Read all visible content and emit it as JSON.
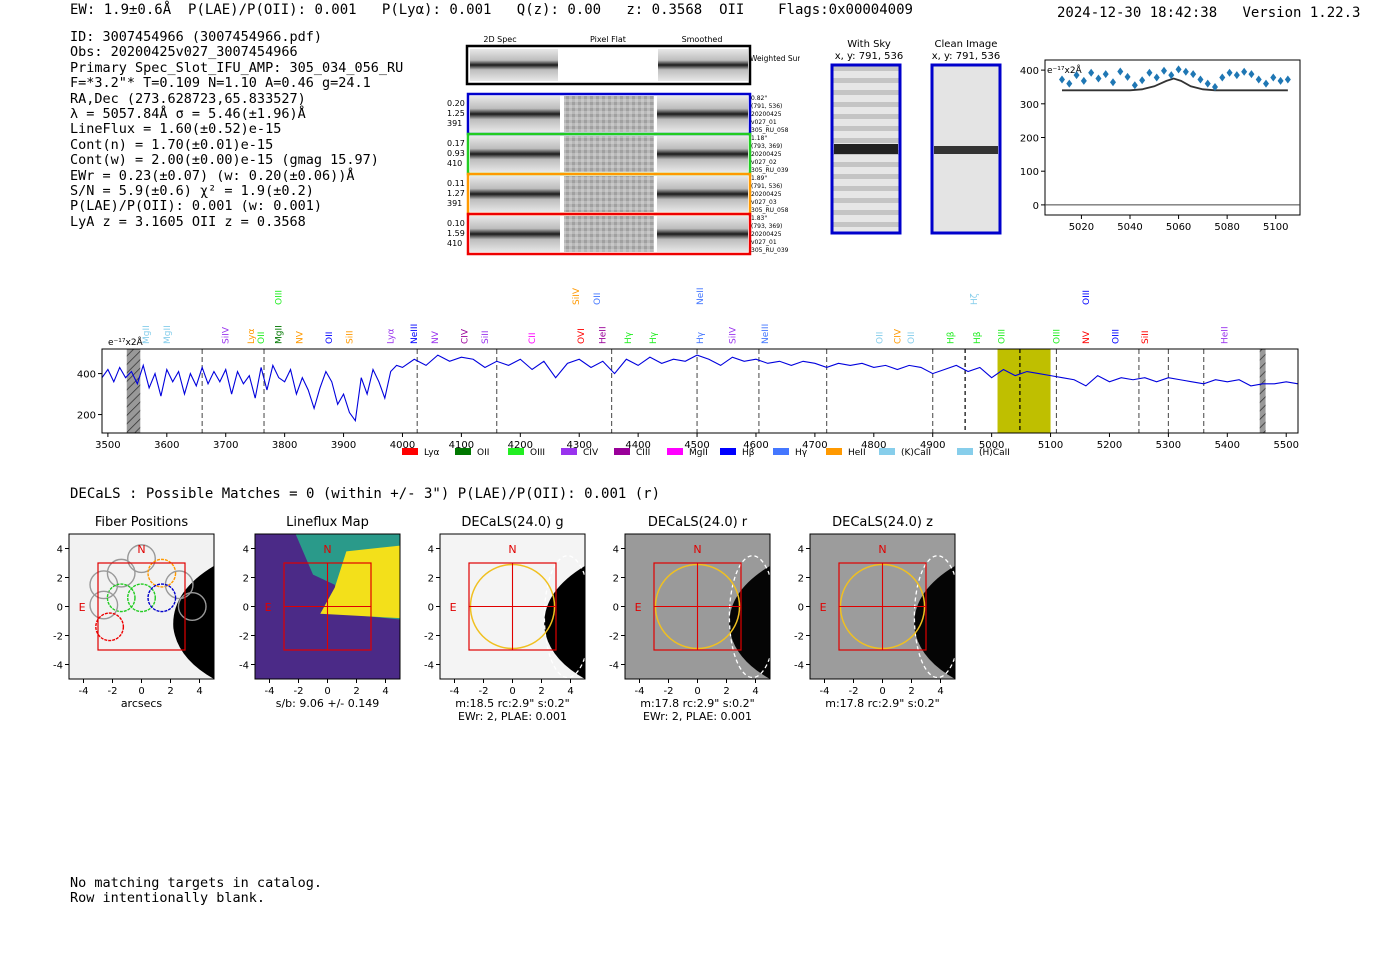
{
  "header": {
    "ew": "EW: 1.9±0.6Å",
    "plae": "P(LAE)/P(OII): 0.001",
    "plya": "P(Lyα): 0.001",
    "qz": "Q(z): 0.00",
    "z": "z: 0.3568",
    "oii": "OII",
    "flags": "Flags:0x00004009",
    "timestamp": "2024-12-30 18:42:38",
    "version": "Version 1.22.3"
  },
  "info_lines": [
    "ID: 3007454966 (3007454966.pdf)",
    "Obs: 20200425v027_3007454966",
    "Primary Spec_Slot_IFU_AMP: 305_034_056_RU",
    "F=*3.2\"*  T=0.109  N=1.10  A=0.46  g=24.1",
    "RA,Dec (273.628723,65.833527)",
    "λ = 5057.84Å  σ = 5.46(±1.96)Å",
    "LineFlux = 1.60(±0.52)e-15",
    "Cont(n) = 1.70(±0.01)e-15",
    "Cont(w) = 2.00(±0.00)e-15 (gmag 15.97)",
    "EWr = 0.23(±0.07) (w: 0.20(±0.06))Å",
    "S/N = 5.9(±0.6)  χ² = 1.9(±0.2)",
    "P(LAE)/P(OII): 0.001 (w: 0.001)",
    "LyA z = 3.1605  OII z = 0.3568"
  ],
  "cutouts": {
    "col_titles": [
      "2D Spec",
      "Pixel Flat",
      "Smoothed"
    ],
    "weighted_label": "Weighted Sum",
    "rows": [
      {
        "left": [
          "0.20",
          "1.25",
          "391"
        ],
        "right": [
          "0.82\"",
          "(791, 536)",
          "20200425",
          "v027_01",
          "305_RU_058"
        ],
        "color": "#0000cc"
      },
      {
        "left": [
          "0.17",
          "0.93",
          "410"
        ],
        "right": [
          "1.18\"",
          "(793, 369)",
          "20200425",
          "v027_02",
          "305_RU_039"
        ],
        "color": "#22cc22"
      },
      {
        "left": [
          "0.11",
          "1.27",
          "391"
        ],
        "right": [
          "1.89\"",
          "(791, 536)",
          "20200425",
          "v027_03",
          "305_RU_058"
        ],
        "color": "#ff9900"
      },
      {
        "left": [
          "0.10",
          "1.59",
          "410"
        ],
        "right": [
          "1.83\"",
          "(793, 369)",
          "20200425",
          "v027_01",
          "305_RU_039"
        ],
        "color": "#ee0000"
      }
    ]
  },
  "sky": {
    "title1": "With Sky",
    "title2": "Clean Image",
    "coords": "x, y: 791, 536"
  },
  "zoom_chart": {
    "type": "scatter",
    "ylabel": "e⁻¹⁷x2Å",
    "xlim": [
      5005,
      5110
    ],
    "ylim": [
      -30,
      430
    ],
    "xticks": [
      5020,
      5040,
      5060,
      5080,
      5100
    ],
    "yticks": [
      0,
      100,
      200,
      300,
      400
    ],
    "x": [
      5012,
      5015,
      5018,
      5021,
      5024,
      5027,
      5030,
      5033,
      5036,
      5039,
      5042,
      5045,
      5048,
      5051,
      5054,
      5057,
      5060,
      5063,
      5066,
      5069,
      5072,
      5075,
      5078,
      5081,
      5084,
      5087,
      5090,
      5093,
      5096,
      5099,
      5102,
      5105
    ],
    "y": [
      372,
      360,
      385,
      368,
      392,
      375,
      388,
      364,
      396,
      380,
      355,
      370,
      392,
      378,
      398,
      385,
      402,
      395,
      388,
      372,
      360,
      350,
      378,
      392,
      385,
      395,
      388,
      372,
      360,
      378,
      368,
      372
    ],
    "model_x": [
      5012,
      5040,
      5045,
      5050,
      5055,
      5058,
      5061,
      5065,
      5070,
      5075,
      5105
    ],
    "model_y": [
      340,
      340,
      343,
      352,
      368,
      375,
      368,
      352,
      343,
      340,
      340
    ]
  },
  "spectrum": {
    "type": "line",
    "ylabel": "e⁻¹⁷x2Å",
    "xlim": [
      3490,
      5520
    ],
    "ylim": [
      110,
      520
    ],
    "xticks": [
      3500,
      3600,
      3700,
      3800,
      3900,
      4000,
      4100,
      4200,
      4300,
      4400,
      4500,
      4600,
      4700,
      4800,
      4900,
      5000,
      5100,
      5200,
      5300,
      5400,
      5500
    ],
    "yticks": [
      200,
      400
    ],
    "x": [
      3490,
      3500,
      3510,
      3520,
      3530,
      3540,
      3550,
      3560,
      3570,
      3580,
      3590,
      3600,
      3610,
      3620,
      3630,
      3640,
      3650,
      3660,
      3670,
      3680,
      3690,
      3700,
      3710,
      3720,
      3730,
      3740,
      3750,
      3760,
      3770,
      3780,
      3790,
      3800,
      3810,
      3820,
      3830,
      3840,
      3850,
      3860,
      3870,
      3880,
      3890,
      3900,
      3910,
      3920,
      3930,
      3940,
      3950,
      3960,
      3970,
      3980,
      3990,
      4000,
      4020,
      4040,
      4060,
      4080,
      4100,
      4120,
      4140,
      4160,
      4180,
      4200,
      4220,
      4240,
      4260,
      4280,
      4300,
      4320,
      4340,
      4360,
      4380,
      4400,
      4420,
      4440,
      4460,
      4480,
      4500,
      4520,
      4540,
      4560,
      4580,
      4600,
      4620,
      4640,
      4660,
      4680,
      4700,
      4720,
      4740,
      4760,
      4780,
      4800,
      4820,
      4840,
      4860,
      4880,
      4900,
      4920,
      4940,
      4960,
      4980,
      5000,
      5020,
      5040,
      5060,
      5080,
      5100,
      5120,
      5140,
      5160,
      5180,
      5200,
      5220,
      5240,
      5260,
      5280,
      5300,
      5320,
      5340,
      5360,
      5380,
      5400,
      5420,
      5440,
      5460,
      5480,
      5500,
      5520
    ],
    "y": [
      380,
      420,
      360,
      430,
      380,
      410,
      350,
      440,
      330,
      400,
      290,
      420,
      360,
      410,
      300,
      400,
      340,
      430,
      350,
      410,
      360,
      420,
      300,
      410,
      350,
      390,
      280,
      430,
      320,
      440,
      380,
      360,
      420,
      300,
      380,
      320,
      230,
      330,
      410,
      360,
      250,
      300,
      210,
      170,
      380,
      300,
      420,
      360,
      280,
      410,
      440,
      430,
      470,
      440,
      490,
      460,
      480,
      470,
      430,
      460,
      440,
      470,
      420,
      460,
      380,
      450,
      470,
      430,
      460,
      400,
      470,
      440,
      480,
      450,
      470,
      460,
      490,
      470,
      440,
      480,
      460,
      470,
      450,
      460,
      440,
      460,
      450,
      430,
      450,
      440,
      450,
      430,
      440,
      420,
      440,
      430,
      400,
      420,
      440,
      410,
      430,
      380,
      420,
      390,
      410,
      400,
      390,
      380,
      370,
      340,
      390,
      360,
      380,
      370,
      380,
      360,
      380,
      370,
      360,
      350,
      370,
      360,
      370,
      340,
      350,
      350,
      360,
      350
    ],
    "rest_lines": [
      3660,
      3765,
      4025,
      4160,
      4355,
      4500,
      4605,
      4720,
      4900,
      5110,
      5250,
      5300,
      5360
    ],
    "obs_lines": [
      4955,
      5048
    ],
    "highlight_band": [
      5010,
      5100
    ],
    "masked": [
      [
        3532,
        3555
      ],
      [
        5455,
        5465
      ]
    ],
    "legend": [
      {
        "label": "Lyα",
        "color": "#ff0000"
      },
      {
        "label": "OII",
        "color": "#007700"
      },
      {
        "label": "OIII",
        "color": "#22ee22"
      },
      {
        "label": "CIV",
        "color": "#9933ee"
      },
      {
        "label": "CIII",
        "color": "#990099"
      },
      {
        "label": "MgII",
        "color": "#ff00ff"
      },
      {
        "label": "Hβ",
        "color": "#0000ff"
      },
      {
        "label": "Hγ",
        "color": "#4477ff"
      },
      {
        "label": "HeII",
        "color": "#ff9900"
      },
      {
        "label": "(K)CaII",
        "color": "#87ceeb"
      },
      {
        "label": "(H)CaII",
        "color": "#87ceeb"
      }
    ],
    "line_labels": [
      {
        "w": 3570,
        "t": "MgII",
        "c": "#87ceeb"
      },
      {
        "w": 3605,
        "t": "MgII",
        "c": "#87ceeb"
      },
      {
        "w": 3705,
        "t": "SiIV",
        "c": "#9933ee"
      },
      {
        "w": 3748,
        "t": "Lyα",
        "c": "#ff9900"
      },
      {
        "w": 3765,
        "t": "OII",
        "c": "#22ee22"
      },
      {
        "w": 3795,
        "t": "MgII",
        "c": "#007700"
      },
      {
        "w": 3830,
        "t": "NV",
        "c": "#ff9900"
      },
      {
        "w": 3880,
        "t": "OII",
        "c": "#0000ff"
      },
      {
        "w": 3915,
        "t": "SiII",
        "c": "#ff9900"
      },
      {
        "w": 3985,
        "t": "Lyα",
        "c": "#9933ee"
      },
      {
        "w": 4025,
        "t": "NeIII",
        "c": "#0000ff"
      },
      {
        "w": 4060,
        "t": "NV",
        "c": "#9933ee"
      },
      {
        "w": 4110,
        "t": "CIV",
        "c": "#990099"
      },
      {
        "w": 4145,
        "t": "SiII",
        "c": "#9933ee"
      },
      {
        "w": 4225,
        "t": "CII",
        "c": "#ff00ff"
      },
      {
        "w": 4308,
        "t": "OVI",
        "c": "#ff0000"
      },
      {
        "w": 4345,
        "t": "HeII",
        "c": "#990099"
      },
      {
        "w": 4388,
        "t": "Hγ",
        "c": "#22ee22"
      },
      {
        "w": 4430,
        "t": "Hγ",
        "c": "#22ee22"
      },
      {
        "w": 4510,
        "t": "Hγ",
        "c": "#4477ff"
      },
      {
        "w": 4565,
        "t": "SiIV",
        "c": "#9933ee"
      },
      {
        "w": 4620,
        "t": "NeIII",
        "c": "#4477ff"
      },
      {
        "w": 4815,
        "t": "OII",
        "c": "#87ceeb"
      },
      {
        "w": 4845,
        "t": "CIV",
        "c": "#ff9900"
      },
      {
        "w": 4868,
        "t": "OII",
        "c": "#87ceeb"
      },
      {
        "w": 4935,
        "t": "Hβ",
        "c": "#22ee22"
      },
      {
        "w": 4980,
        "t": "Hβ",
        "c": "#22ee22"
      },
      {
        "w": 5022,
        "t": "OIII",
        "c": "#22ee22"
      },
      {
        "w": 5115,
        "t": "OIII",
        "c": "#22ee22"
      },
      {
        "w": 5165,
        "t": "NV",
        "c": "#ff0000"
      },
      {
        "w": 5215,
        "t": "OIII",
        "c": "#0000ff"
      },
      {
        "w": 5265,
        "t": "SiII",
        "c": "#ff0000"
      },
      {
        "w": 5400,
        "t": "HeII",
        "c": "#9933ee"
      }
    ],
    "upper_labels": [
      {
        "w": 3795,
        "t": "OIII",
        "c": "#22ee22"
      },
      {
        "w": 4300,
        "t": "SiIV",
        "c": "#ff9900"
      },
      {
        "w": 4335,
        "t": "OII",
        "c": "#4477ff"
      },
      {
        "w": 4510,
        "t": "NeII",
        "c": "#4477ff"
      },
      {
        "w": 4975,
        "t": "Hζ",
        "c": "#87ceeb"
      },
      {
        "w": 5165,
        "t": "OIII",
        "c": "#0000ff"
      }
    ]
  },
  "decals": {
    "title": "DECaLS : Possible Matches = 0 (within +/- 3\")  P(LAE)/P(OII): 0.001 (r)",
    "panels": [
      {
        "title": "Fiber Positions",
        "xlabel": "arcsecs",
        "sub": ""
      },
      {
        "title": "Lineflux Map",
        "xlabel": "s/b: 9.06 +/- 0.149",
        "sub": ""
      },
      {
        "title": "DECaLS(24.0) g",
        "xlabel": "m:18.5 rc:2.9\"  s:0.2\"",
        "sub": "EWr: 2, PLAE: 0.001"
      },
      {
        "title": "DECaLS(24.0) r",
        "xlabel": "m:17.8 rc:2.9\"  s:0.2\"",
        "sub": "EWr: 2, PLAE: 0.001"
      },
      {
        "title": "DECaLS(24.0) z",
        "xlabel": "m:17.8 rc:2.9\"  s:0.2\"",
        "sub": ""
      }
    ],
    "north": "N",
    "east": "E",
    "ticks": [
      -4,
      -2,
      0,
      2,
      4
    ]
  },
  "footer": [
    "No matching targets in catalog.",
    "Row intentionally blank."
  ]
}
